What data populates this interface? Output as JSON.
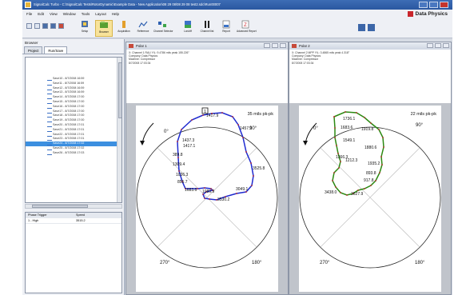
{
  "window": {
    "title": "SignalCalc Turbo - C:\\SignalCalc Tests\\RotorDynamic\\Example Data - New Application\\08 29 08\\08 29 08 test2.sdc\\Run00007",
    "brand": "Data Physics"
  },
  "menu": [
    "File",
    "Edit",
    "View",
    "Window",
    "Tools",
    "Layout",
    "Help"
  ],
  "toolbar": {
    "setup": "Setup",
    "browser": "Browser",
    "acquisition": "Acquisition",
    "reference": "Reference",
    "channel_selector": "Channel Selector",
    "lon_off": "Lon/off",
    "channel_list": "Channel list",
    "report": "Report",
    "advanced_report": "Advanced Report"
  },
  "browser": {
    "title": "Browser",
    "tab_project": "Project",
    "tab_runsave": "Run/Save",
    "items": [
      {
        "label": "Save10 - 8/7/2008 16:59",
        "selected": false
      },
      {
        "label": "Save11 - 8/7/2008 16:59",
        "selected": false
      },
      {
        "label": "Save12 - 8/7/2008 16:59",
        "selected": false
      },
      {
        "label": "Save13 - 8/7/2008 16:59",
        "selected": false
      },
      {
        "label": "Save14 - 8/7/2008 17:00",
        "selected": false
      },
      {
        "label": "Save15 - 8/7/2008 17:00",
        "selected": false
      },
      {
        "label": "Save16 - 8/7/2008 17:00",
        "selected": false
      },
      {
        "label": "Save17 - 8/7/2008 17:00",
        "selected": false
      },
      {
        "label": "Save18 - 8/7/2008 17:00",
        "selected": false
      },
      {
        "label": "Save19 - 8/7/2008 17:00",
        "selected": false
      },
      {
        "label": "Save20 - 8/7/2008 17:01",
        "selected": false
      },
      {
        "label": "Save21 - 8/7/2008 17:01",
        "selected": false
      },
      {
        "label": "Save22 - 8/7/2008 17:01",
        "selected": false
      },
      {
        "label": "Save23 - 8/7/2008 17:01",
        "selected": false
      },
      {
        "label": "Save24 - 8/7/2008 17:02",
        "selected": true
      },
      {
        "label": "Save25 - 8/7/2008 17:02",
        "selected": false
      },
      {
        "label": "Save26 - 8/7/2008 17:03",
        "selected": false
      }
    ],
    "props_headers": [
      "Phase Trigger",
      "Speed"
    ],
    "props_row": [
      "1 - High",
      "3515.2"
    ]
  },
  "polar1": {
    "title": "Polar 1",
    "info_lines": [
      "X: Channel 1   RAU   Y/L: 9.4786 mils peak  155.226°",
      "Company: Data Physics",
      "Machine: Compressor",
      "8/7/2008 17:03:34"
    ],
    "marker": "1",
    "scale": "35 mils pk-pk",
    "angles": [
      "0°",
      "90°",
      "180°",
      "270°"
    ],
    "rpm_labels": [
      "1417.9",
      "1457.1",
      "1437.3",
      "1417.1",
      "389.8",
      "1309.4",
      "1036.3",
      "855.7",
      "1080.9",
      "3525.8",
      "3049.1",
      "3530.2",
      "1683.6"
    ],
    "curve_color": "#1f2bd0"
  },
  "polar2": {
    "title": "Polar 2",
    "info_lines": [
      "X: Channel 2   MPP   Y/L: 3.4865 mils peak  4.318°",
      "Company: Data Physics",
      "Machine: Compressor",
      "8/7/2008 17:03:34"
    ],
    "scale": "22 mils pk-pk",
    "angles": [
      "0°",
      "90°",
      "180°",
      "270°"
    ],
    "rpm_labels": [
      "1736.1",
      "1683.6",
      "1549.1",
      "1366.3",
      "1212.3",
      "3438.0",
      "1919.8",
      "1880.6",
      "1935.2",
      "893.8",
      "917.8",
      "3627.9"
    ],
    "curve_color": "#2c8a12"
  },
  "right_tools": [
    "Time",
    "Time/FFT Analysis",
    "Spec",
    "Trend",
    "Orbit",
    "Polar",
    "Bode",
    "Shaft Centerline",
    "Cascade",
    "Waterfall",
    "Spectrum",
    "Table"
  ]
}
